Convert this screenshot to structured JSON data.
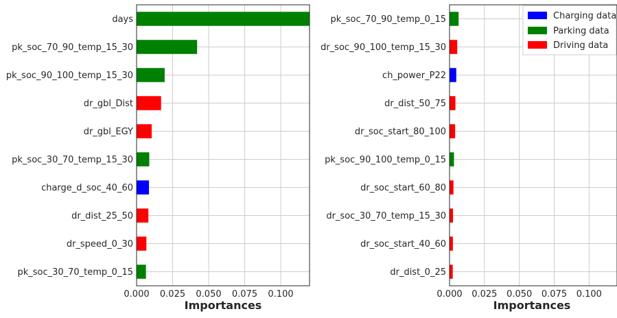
{
  "chart_data": [
    {
      "type": "bar",
      "orientation": "horizontal",
      "xlabel": "Importances",
      "xlim": [
        0,
        0.12
      ],
      "xticks": [
        "0.000",
        "0.025",
        "0.050",
        "0.075",
        "0.100"
      ],
      "grid": true,
      "categories": [
        "days",
        "pk_soc_70_90_temp_15_30",
        "pk_soc_90_100_temp_15_30",
        "dr_gbl_Dist",
        "dr_gbl_EGY",
        "pk_soc_30_70_temp_15_30",
        "charge_d_soc_40_60",
        "dr_dist_25_50",
        "dr_speed_0_30",
        "pk_soc_30_70_temp_0_15"
      ],
      "values": [
        0.125,
        0.042,
        0.0195,
        0.017,
        0.0105,
        0.0088,
        0.0086,
        0.0082,
        0.0068,
        0.0065
      ],
      "groups": [
        "Parking data",
        "Parking data",
        "Parking data",
        "Driving data",
        "Driving data",
        "Parking data",
        "Charging data",
        "Driving data",
        "Driving data",
        "Parking data"
      ]
    },
    {
      "type": "bar",
      "orientation": "horizontal",
      "xlabel": "Importances",
      "xlim": [
        0,
        0.12
      ],
      "xticks": [
        "0.000",
        "0.025",
        "0.050",
        "0.075",
        "0.100"
      ],
      "grid": true,
      "categories": [
        "pk_soc_70_90_temp_0_15",
        "dr_soc_90_100_temp_15_30",
        "ch_power_P22",
        "dr_dist_50_75",
        "dr_soc_start_80_100",
        "pk_soc_90_100_temp_0_15",
        "dr_soc_start_60_80",
        "dr_soc_30_70_temp_15_30",
        "dr_soc_start_40_60",
        "dr_dist_0_25"
      ],
      "values": [
        0.0065,
        0.0055,
        0.0048,
        0.0042,
        0.004,
        0.0032,
        0.0028,
        0.0025,
        0.0024,
        0.0023
      ],
      "groups": [
        "Parking data",
        "Driving data",
        "Charging data",
        "Driving data",
        "Driving data",
        "Parking data",
        "Driving data",
        "Driving data",
        "Driving data",
        "Driving data"
      ],
      "legend": {
        "position": "top-right",
        "entries": [
          {
            "label": "Charging data",
            "color": "#0000ff"
          },
          {
            "label": "Parking data",
            "color": "#008000"
          },
          {
            "label": "Driving data",
            "color": "#ff0000"
          }
        ]
      }
    }
  ],
  "group_colors": {
    "Charging data": "#0000ff",
    "Parking data": "#008000",
    "Driving data": "#ff0000"
  }
}
